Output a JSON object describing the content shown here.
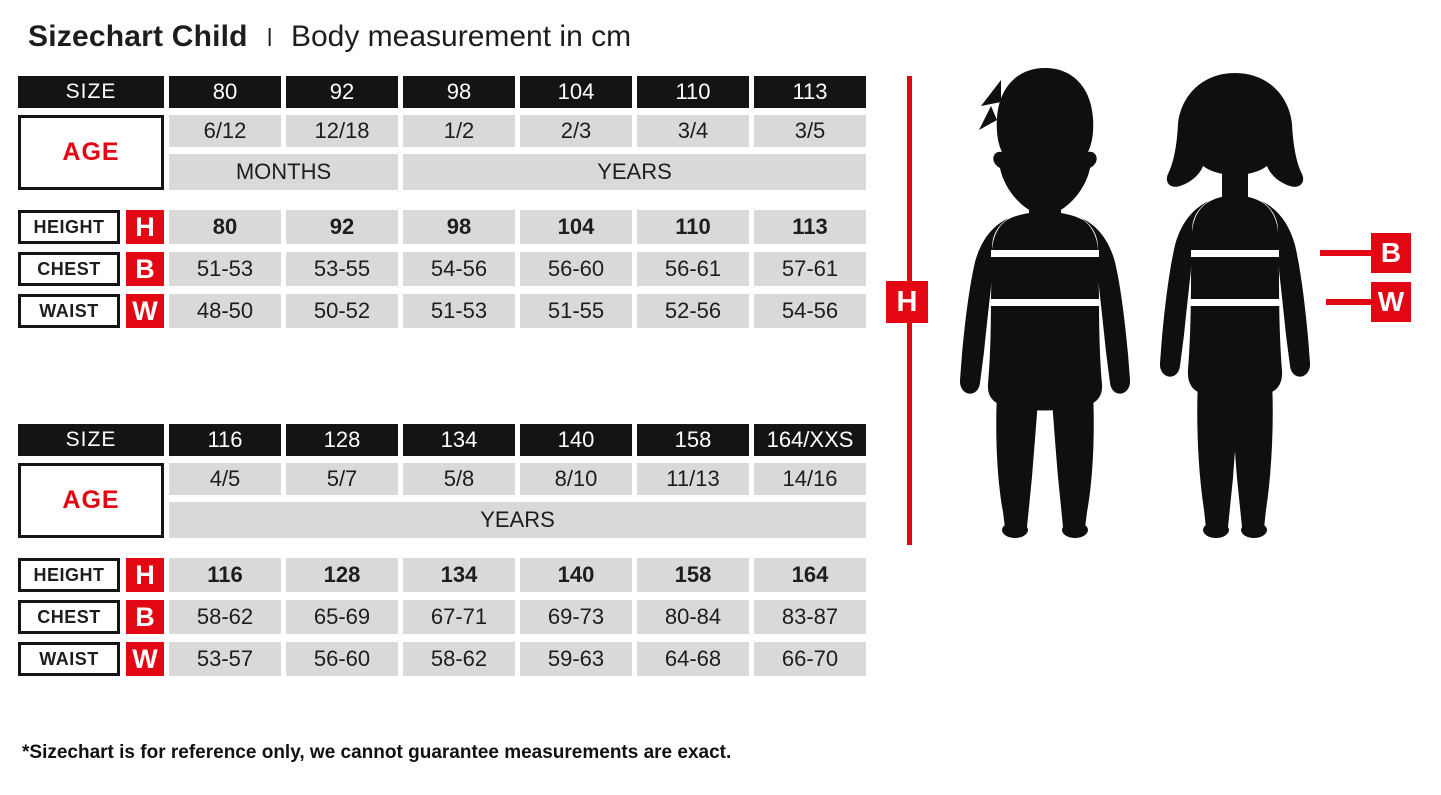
{
  "header": {
    "title_bold": "Sizechart Child",
    "divider": "I",
    "subtitle": "Body measurement in cm"
  },
  "labels": {
    "size": "SIZE",
    "age": "AGE",
    "height": "HEIGHT",
    "chest": "CHEST",
    "waist": "WAIST",
    "h_badge": "H",
    "b_badge": "B",
    "w_badge": "W"
  },
  "colors": {
    "red": "#e30613",
    "black": "#141414",
    "cell_gray": "#d9d9d9"
  },
  "tables": [
    {
      "sizes": [
        "80",
        "92",
        "98",
        "104",
        "110",
        "113"
      ],
      "ages": [
        "6/12",
        "12/18",
        "1/2",
        "2/3",
        "3/4",
        "3/5"
      ],
      "age_units": [
        {
          "label": "MONTHS",
          "span": 2
        },
        {
          "label": "YEARS",
          "span": 4
        }
      ],
      "height": [
        "80",
        "92",
        "98",
        "104",
        "110",
        "113"
      ],
      "chest": [
        "51-53",
        "53-55",
        "54-56",
        "56-60",
        "56-61",
        "57-61"
      ],
      "waist": [
        "48-50",
        "50-52",
        "51-53",
        "51-55",
        "52-56",
        "54-56"
      ]
    },
    {
      "sizes": [
        "116",
        "128",
        "134",
        "140",
        "158",
        "164/XXS"
      ],
      "ages": [
        "4/5",
        "5/7",
        "5/8",
        "8/10",
        "11/13",
        "14/16"
      ],
      "age_units": [
        {
          "label": "YEARS",
          "span": 6
        }
      ],
      "height": [
        "116",
        "128",
        "134",
        "140",
        "158",
        "164"
      ],
      "chest": [
        "58-62",
        "65-69",
        "67-71",
        "69-73",
        "80-84",
        "83-87"
      ],
      "waist": [
        "53-57",
        "56-60",
        "58-62",
        "59-63",
        "64-68",
        "66-70"
      ]
    }
  ],
  "footer": {
    "note": "*Sizechart is for reference only, we cannot guarantee measurements are exact."
  }
}
